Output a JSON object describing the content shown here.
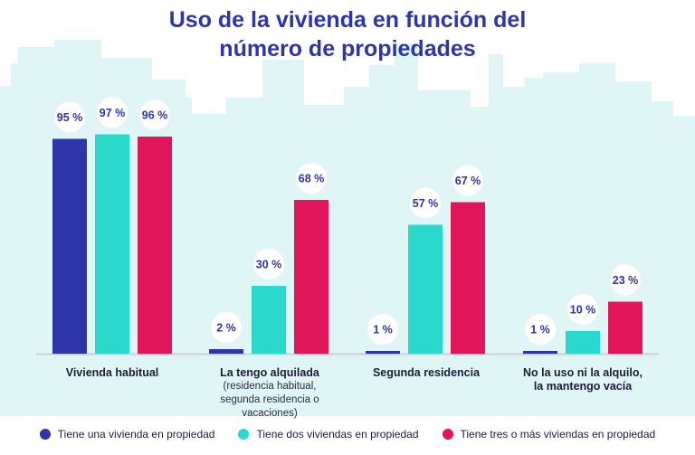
{
  "title": {
    "line1": "Uso de la vivienda en función del",
    "line2": "número de propiedades"
  },
  "colors": {
    "title": "#2e35a8",
    "skyline": "#dff5f6",
    "axis": "#cfcfd6",
    "one_home": "#2e35a8",
    "two_homes": "#2bd8cc",
    "three_plus_homes": "#e0155a"
  },
  "chart_data": {
    "type": "bar",
    "title": "Uso de la vivienda en función del número de propiedades",
    "categories": [
      {
        "label": "Vivienda habitual",
        "sublabel": ""
      },
      {
        "label": "La tengo alquilada",
        "sublabel": "(residencia habitual, segunda residencia o vacaciones)"
      },
      {
        "label": "Segunda residencia",
        "sublabel": ""
      },
      {
        "label": "No la uso ni la alquilo, la mantengo vacía",
        "sublabel": ""
      }
    ],
    "series": [
      {
        "name": "Tiene una vivienda en propiedad",
        "color": "#2e35a8",
        "values": [
          95,
          2,
          1,
          1
        ],
        "labels": [
          "95 %",
          "2 %",
          "1 %",
          "1 %"
        ]
      },
      {
        "name": "Tiene dos viviendas en propiedad",
        "color": "#2bd8cc",
        "values": [
          97,
          30,
          57,
          10
        ],
        "labels": [
          "97 %",
          "30 %",
          "57 %",
          "10 %"
        ]
      },
      {
        "name": "Tiene tres o más viviendas en propiedad",
        "color": "#e0155a",
        "values": [
          96,
          68,
          67,
          23
        ],
        "labels": [
          "96 %",
          "68 %",
          "67 %",
          "23 %"
        ]
      }
    ],
    "ylim": [
      0,
      100
    ],
    "unit": "%",
    "legend_position": "bottom"
  }
}
